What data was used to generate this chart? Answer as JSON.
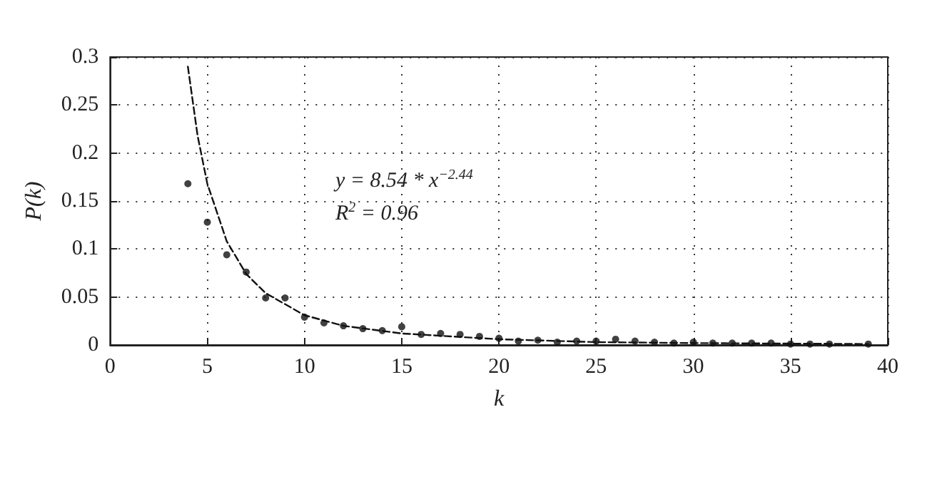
{
  "chart_data": {
    "type": "scatter",
    "xlabel": "k",
    "ylabel": "P(k)",
    "xlim": [
      0,
      40
    ],
    "ylim": [
      0,
      0.3
    ],
    "xticks": [
      0,
      5,
      10,
      15,
      20,
      25,
      30,
      35,
      40
    ],
    "yticks": [
      0,
      0.05,
      0.1,
      0.15,
      0.2,
      0.25,
      0.3
    ],
    "grid": true,
    "marker": "circle",
    "annotations": [
      "y = 8.54 * x$^{−2.44}$",
      "R$^{2}$ = 0.96"
    ],
    "series": [
      {
        "color": "#111111",
        "x": [
          4,
          5,
          6,
          7,
          8,
          9,
          10,
          11,
          12,
          13,
          14,
          15,
          16,
          17,
          18,
          19,
          20,
          21,
          22,
          23,
          24,
          25,
          26,
          27,
          28,
          29,
          30,
          31,
          32,
          33,
          34,
          35,
          36,
          37,
          39
        ],
        "values": [
          0.168,
          0.128,
          0.094,
          0.076,
          0.049,
          0.049,
          0.029,
          0.023,
          0.02,
          0.017,
          0.015,
          0.019,
          0.011,
          0.012,
          0.011,
          0.009,
          0.007,
          0.004,
          0.005,
          0.003,
          0.004,
          0.004,
          0.006,
          0.004,
          0.003,
          0.002,
          0.003,
          0.002,
          0.002,
          0.002,
          0.002,
          0.001,
          0.001,
          0.001,
          0.001
        ]
      },
      {
        "type": "line",
        "color": "#111111",
        "line_style": "dashed",
        "marker": "none",
        "x": [
          4,
          4.5,
          5,
          6,
          7,
          8,
          10,
          12,
          15,
          20,
          25,
          30,
          39
        ],
        "values": [
          0.29,
          0.218,
          0.168,
          0.108,
          0.074,
          0.054,
          0.031,
          0.02,
          0.012,
          0.006,
          0.003,
          0.002,
          0.001
        ]
      }
    ]
  }
}
